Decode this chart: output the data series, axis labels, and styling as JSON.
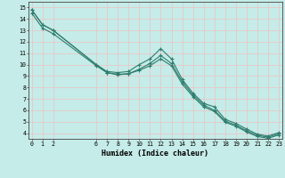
{
  "background_color": "#c5ece8",
  "grid_color": "#e8c8c8",
  "line_color": "#2e7d6e",
  "x_ticks": [
    0,
    1,
    2,
    6,
    7,
    8,
    9,
    10,
    11,
    12,
    13,
    14,
    15,
    16,
    17,
    18,
    19,
    20,
    21,
    22,
    23
  ],
  "line1_x": [
    0,
    1,
    2,
    6,
    7,
    8,
    9,
    10,
    11,
    12,
    13,
    14,
    15,
    16,
    17,
    18,
    19,
    20,
    21,
    22,
    23
  ],
  "line1_y": [
    14.8,
    13.5,
    13.0,
    10.0,
    9.4,
    9.3,
    9.4,
    10.0,
    10.5,
    11.4,
    10.5,
    8.7,
    7.5,
    6.6,
    6.3,
    5.2,
    4.85,
    4.35,
    3.9,
    3.75,
    4.05
  ],
  "line2_x": [
    0,
    1,
    2,
    6,
    7,
    8,
    9,
    10,
    11,
    12,
    13,
    14,
    15,
    16,
    17,
    18,
    19,
    20,
    21,
    22,
    23
  ],
  "line2_y": [
    14.5,
    13.2,
    12.7,
    9.9,
    9.3,
    9.15,
    9.2,
    9.6,
    10.1,
    10.8,
    10.1,
    8.5,
    7.35,
    6.45,
    6.0,
    5.05,
    4.7,
    4.2,
    3.8,
    3.65,
    3.95
  ],
  "line3_x": [
    0,
    1,
    2,
    6,
    7,
    8,
    9,
    10,
    11,
    12,
    13,
    14,
    15,
    16,
    17,
    18,
    19,
    20,
    21,
    22,
    23
  ],
  "line3_y": [
    14.8,
    13.5,
    13.0,
    10.0,
    9.3,
    9.1,
    9.2,
    9.5,
    9.9,
    10.5,
    9.9,
    8.3,
    7.2,
    6.3,
    5.9,
    4.95,
    4.6,
    4.1,
    3.7,
    3.55,
    3.85
  ],
  "xlim": [
    -0.3,
    23.3
  ],
  "ylim": [
    3.5,
    15.5
  ],
  "yticks": [
    4,
    5,
    6,
    7,
    8,
    9,
    10,
    11,
    12,
    13,
    14,
    15
  ],
  "xlabel": "Humidex (Indice chaleur)",
  "xlabel_fontsize": 6.0,
  "tick_fontsize": 4.8
}
